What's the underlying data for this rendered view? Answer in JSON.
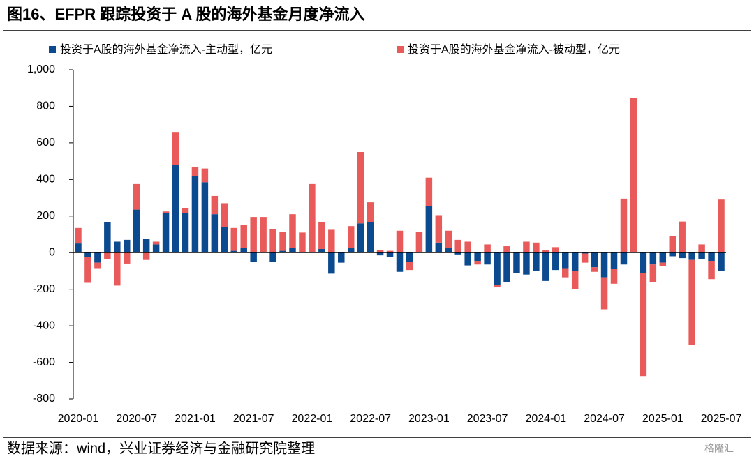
{
  "chart_data": {
    "type": "stacked_bar",
    "title": "图16、EFPR 跟踪投资于 A 股的海外基金月度净流入",
    "source": "数据来源：wind，兴业证券经济与金融研究院整理",
    "watermark": "格隆汇",
    "categories": [
      "2020-01",
      null,
      null,
      null,
      null,
      null,
      "2020-07",
      null,
      null,
      null,
      null,
      null,
      "2021-01",
      null,
      null,
      null,
      null,
      null,
      "2021-07",
      null,
      null,
      null,
      null,
      null,
      "2022-01",
      null,
      null,
      null,
      null,
      null,
      "2022-07",
      null,
      null,
      null,
      null,
      null,
      "2023-01",
      null,
      null,
      null,
      null,
      null,
      "2023-07",
      null,
      null,
      null,
      null,
      null,
      "2024-01",
      null,
      null,
      null,
      null,
      null,
      "2024-07",
      null,
      null,
      null,
      null,
      null,
      "2025-01",
      null,
      null,
      null,
      null,
      null,
      "2025-07"
    ],
    "series": [
      {
        "name": "投资于A股的海外基金净流入-主动型，亿元",
        "color": "#0b4a8f",
        "values": [
          50,
          -25,
          -55,
          165,
          60,
          70,
          235,
          75,
          45,
          215,
          480,
          215,
          420,
          385,
          210,
          140,
          10,
          25,
          -50,
          0,
          -50,
          10,
          25,
          0,
          0,
          20,
          -115,
          -55,
          25,
          160,
          165,
          -15,
          -25,
          -105,
          -50,
          0,
          255,
          55,
          25,
          -10,
          -70,
          -45,
          -65,
          -175,
          -160,
          -110,
          -120,
          -100,
          -155,
          -95,
          -85,
          -100,
          -5,
          -80,
          -135,
          -90,
          -65,
          0,
          -110,
          -65,
          -55,
          -20,
          -30,
          -40,
          -35,
          -45,
          -100
        ]
      },
      {
        "name": "投资于A股的海外基金净流入-被动型，亿元",
        "color": "#e95b5b",
        "values": [
          85,
          -140,
          -30,
          -35,
          -180,
          -60,
          140,
          -40,
          15,
          10,
          180,
          30,
          50,
          75,
          100,
          130,
          125,
          125,
          195,
          195,
          130,
          105,
          185,
          110,
          375,
          145,
          125,
          0,
          120,
          390,
          110,
          15,
          10,
          120,
          -45,
          115,
          155,
          150,
          95,
          70,
          60,
          -20,
          45,
          -15,
          35,
          0,
          60,
          55,
          15,
          30,
          -50,
          -100,
          -50,
          -25,
          -175,
          -80,
          295,
          845,
          -565,
          -95,
          -20,
          90,
          170,
          -465,
          45,
          -100,
          290
        ]
      }
    ],
    "ylim": [
      -800,
      1000
    ],
    "yticks": [
      -800,
      -600,
      -400,
      -200,
      0,
      200,
      400,
      600,
      800,
      {
        "value": 1000,
        "label": "1,000"
      }
    ]
  }
}
